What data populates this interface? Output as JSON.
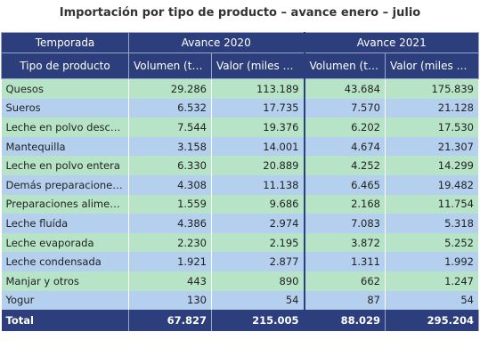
{
  "title": "Importación por tipo de producto – avance enero – julio",
  "chart_data": {
    "type": "table",
    "header": {
      "season_label": "Temporada",
      "product_label": "Tipo de producto",
      "groups": [
        "Avance 2020",
        "Avance 2021"
      ],
      "columns": [
        "Volumen (ton)",
        "Valor (miles USD)",
        "Volumen (ton)",
        "Valor (miles USD)"
      ]
    },
    "rows": [
      {
        "product": "Quesos",
        "values": [
          "29.286",
          "113.189",
          "43.684",
          "175.839"
        ]
      },
      {
        "product": "Sueros",
        "values": [
          "6.532",
          "17.735",
          "7.570",
          "21.128"
        ]
      },
      {
        "product": "Leche en polvo descrema…",
        "values": [
          "7.544",
          "19.376",
          "6.202",
          "17.530"
        ]
      },
      {
        "product": "Mantequilla",
        "values": [
          "3.158",
          "14.001",
          "4.674",
          "21.307"
        ]
      },
      {
        "product": "Leche en polvo entera",
        "values": [
          "6.330",
          "20.889",
          "4.252",
          "14.299"
        ]
      },
      {
        "product": "Demás preparaciones en …",
        "values": [
          "4.308",
          "11.138",
          "6.465",
          "19.482"
        ]
      },
      {
        "product": "Preparaciones alimentaci…",
        "values": [
          "1.559",
          "9.686",
          "2.168",
          "11.754"
        ]
      },
      {
        "product": "Leche fluída",
        "values": [
          "4.386",
          "2.974",
          "7.083",
          "5.318"
        ]
      },
      {
        "product": "Leche evaporada",
        "values": [
          "2.230",
          "2.195",
          "3.872",
          "5.252"
        ]
      },
      {
        "product": "Leche condensada",
        "values": [
          "1.921",
          "2.877",
          "1.311",
          "1.992"
        ]
      },
      {
        "product": "Manjar y otros",
        "values": [
          "443",
          "890",
          "662",
          "1.247"
        ]
      },
      {
        "product": "Yogur",
        "values": [
          "130",
          "54",
          "87",
          "54"
        ]
      }
    ],
    "total": {
      "label": "Total",
      "values": [
        "67.827",
        "215.005",
        "88.029",
        "295.204"
      ]
    },
    "colors": {
      "header": "#2c3e7b",
      "row_green": "#b7e4c7",
      "row_blue": "#b4d0ee"
    }
  }
}
